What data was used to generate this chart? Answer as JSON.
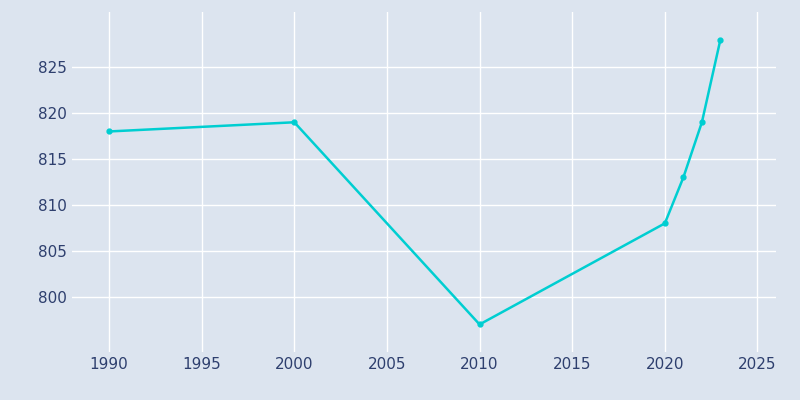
{
  "x_data": [
    1990,
    2000,
    2010,
    2020,
    2021,
    2022,
    2023
  ],
  "y_data": [
    818,
    819,
    797,
    808,
    813,
    819,
    828
  ],
  "line_color": "#00CED1",
  "background_color": "#dce4ef",
  "grid_color": "#ffffff",
  "tick_label_color": "#2e3f6e",
  "xlim": [
    1988,
    2026
  ],
  "ylim": [
    794,
    831
  ],
  "xticks": [
    1990,
    1995,
    2000,
    2005,
    2010,
    2015,
    2020,
    2025
  ],
  "yticks": [
    800,
    805,
    810,
    815,
    820,
    825
  ],
  "line_width": 1.8,
  "marker": "o",
  "marker_size": 3.5,
  "figsize": [
    8.0,
    4.0
  ],
  "dpi": 100
}
